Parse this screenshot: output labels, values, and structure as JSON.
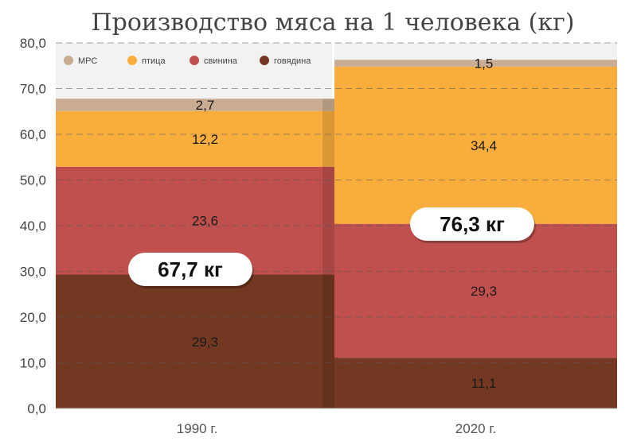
{
  "chart_data": {
    "type": "bar",
    "stacked": true,
    "title": "Производство мяса на 1 человека (кг)",
    "categories": [
      "1990 г.",
      "2020 г."
    ],
    "series": [
      {
        "name": "говядина",
        "values": [
          29.3,
          11.1
        ],
        "labels": [
          "29,3",
          "11,1"
        ],
        "color": "#733822"
      },
      {
        "name": "свинина",
        "values": [
          23.6,
          29.3
        ],
        "labels": [
          "23,6",
          "29,3"
        ],
        "color": "#c0504d"
      },
      {
        "name": "птица",
        "values": [
          12.2,
          34.4
        ],
        "labels": [
          "12,2",
          "34,4"
        ],
        "color": "#f9ad3c"
      },
      {
        "name": "МРС",
        "values": [
          2.7,
          1.5
        ],
        "labels": [
          "2,7",
          "1,5"
        ],
        "color": "#c9ac92"
      }
    ],
    "totals": [
      "67,7 кг",
      "76,3 кг"
    ],
    "ylim": [
      0,
      80
    ],
    "yticks": [
      0,
      10,
      20,
      30,
      40,
      50,
      60,
      70,
      80
    ],
    "ytick_labels": [
      "0,0",
      "10,0",
      "20,0",
      "30,0",
      "40,0",
      "50,0",
      "60,0",
      "70,0",
      "80,0"
    ],
    "legend_order": [
      "МРС",
      "птица",
      "свинина",
      "говядина"
    ],
    "legend_position": "top-left",
    "grid": true
  }
}
